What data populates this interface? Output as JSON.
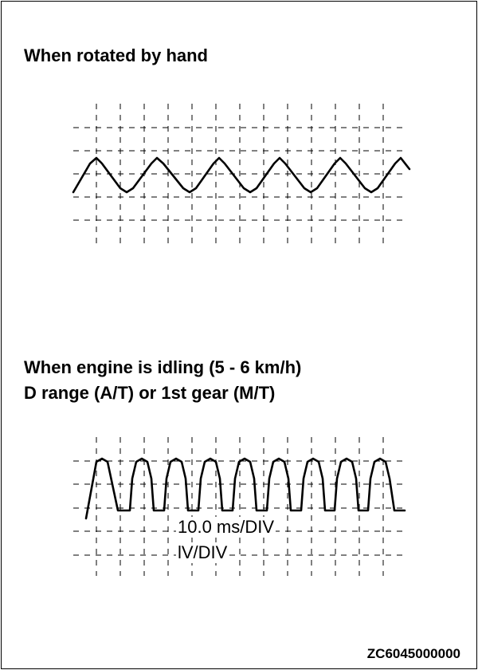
{
  "figure": {
    "heading_hand": "When rotated by hand",
    "heading_idle_line1": "When engine is idling (5 - 6 km/h)",
    "heading_idle_line2": "D range (A/T) or 1st gear (M/T)",
    "time_scale": "10.0 ms/DIV",
    "voltage_scale": "lV/DIV",
    "figure_id": "ZC6045000000"
  },
  "waveforms": {
    "hand_rotation": {
      "shape": "triangle",
      "peaks_visible": 6
    },
    "idling": {
      "shape": "trapezoid",
      "pulses_visible": 9
    }
  },
  "colors": {
    "ink": "#000000",
    "background": "#ffffff"
  }
}
